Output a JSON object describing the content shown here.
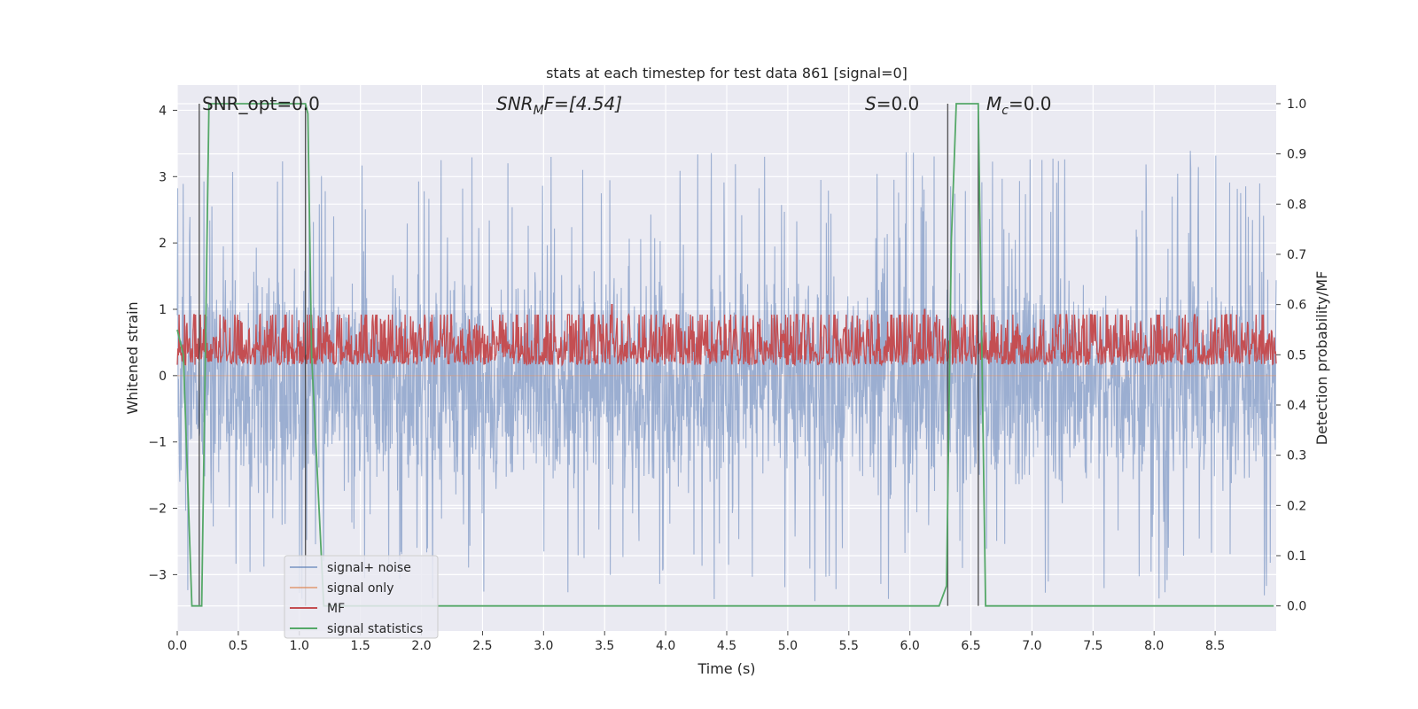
{
  "chart_data": {
    "type": "line",
    "title": "stats at each timestep for test data 861 [signal=0]",
    "xlabel": "Time (s)",
    "ylabel_left": "Whitened strain",
    "ylabel_right": "Detection probability/MF",
    "xlim": [
      0.0,
      9.0
    ],
    "ylim_left": [
      -3.85,
      4.38
    ],
    "ylim_right": [
      -0.05,
      1.037
    ],
    "x_ticks": [
      "0.0",
      "0.5",
      "1.0",
      "1.5",
      "2.0",
      "2.5",
      "3.0",
      "3.5",
      "4.0",
      "4.5",
      "5.0",
      "5.5",
      "6.0",
      "6.5",
      "7.0",
      "7.5",
      "8.0",
      "8.5"
    ],
    "y_ticks_left": [
      "−3",
      "−2",
      "−1",
      "0",
      "1",
      "2",
      "3",
      "4"
    ],
    "y_ticks_right": [
      "0.0",
      "0.1",
      "0.2",
      "0.3",
      "0.4",
      "0.5",
      "0.6",
      "0.7",
      "0.8",
      "0.9",
      "1.0"
    ],
    "grid": true,
    "legend_position": "lower-left",
    "background_color": "#eaeaf2",
    "annotations": {
      "snr_opt": "SNR_opt=0.0",
      "snr_mf_sym": "SNR",
      "snr_mf_sub": "M",
      "snr_mf_rest": "F=[4.54]",
      "s_sym": "S",
      "s_rest": "=0.0",
      "mc_sym": "M",
      "mc_sub": "c",
      "mc_rest": "=0.0"
    },
    "series": [
      {
        "name": "signal+ noise",
        "color": "#4c72b0",
        "axis": "left",
        "description_values": "noise band roughly within [-1.2, 1.0] with spikes reaching about ±3.4",
        "envelope": {
          "low": -1.2,
          "high": 1.0,
          "spike_max": 3.4,
          "spike_min": -3.4
        }
      },
      {
        "name": "signal only",
        "color": "#dd8452",
        "axis": "left",
        "values_constant": 0.0
      },
      {
        "name": "MF",
        "color": "#c44e52",
        "axis": "right",
        "envelope": {
          "low": 0.48,
          "high": 0.58,
          "spike_max": 0.6
        },
        "spikes": [
          [
            3.56,
            0.6
          ],
          [
            6.12,
            0.59
          ]
        ]
      },
      {
        "name": "signal statistics",
        "color": "#55a868",
        "axis": "right",
        "x": [
          0.0,
          0.05,
          0.12,
          0.2,
          0.26,
          0.3,
          1.05,
          1.07,
          1.1,
          1.2,
          6.24,
          6.3,
          6.34,
          6.38,
          6.56,
          6.62,
          8.98
        ],
        "y": [
          0.55,
          0.5,
          0.0,
          0.0,
          1.0,
          1.0,
          1.0,
          0.98,
          0.5,
          0.0,
          0.0,
          0.04,
          0.73,
          1.0,
          1.0,
          0.0,
          0.0
        ]
      }
    ],
    "vertical_markers_x": [
      0.18,
      1.05,
      6.31,
      6.56
    ]
  }
}
